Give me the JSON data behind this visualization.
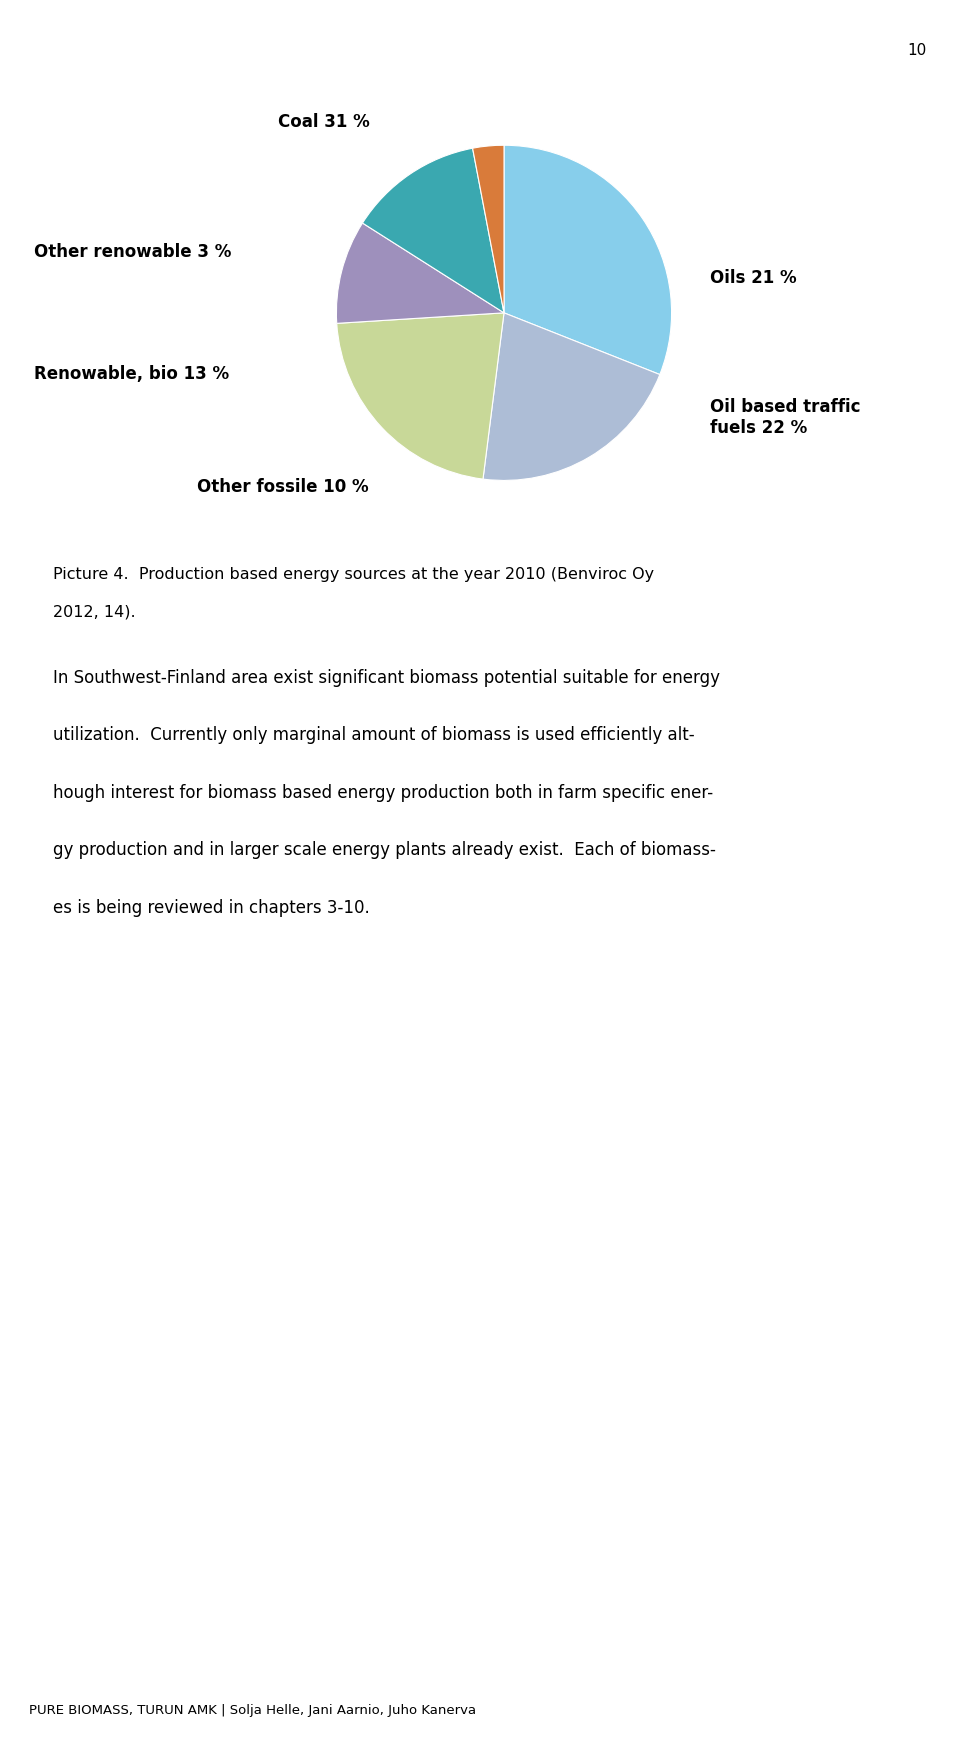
{
  "page_number": "10",
  "pie_values": [
    31,
    21,
    22,
    10,
    13,
    3
  ],
  "pie_labels": [
    "Coal 31 %",
    "Oils 21 %",
    "Oil based traffic\nfuels 22 %",
    "Other fossile 10 %",
    "Renowable, bio 13 %",
    "Other renowable 3 %"
  ],
  "pie_colors": [
    "#87CEEB",
    "#ADBDD6",
    "#C8D898",
    "#9E90BC",
    "#3AA8B0",
    "#D97B3A"
  ],
  "caption_line1": "Picture 4.  Production based energy sources at the year 2010 (Benviroc Oy",
  "caption_line2": "2012, 14).",
  "body_lines": [
    "In Southwest-Finland area exist significant biomass potential suitable for energy",
    "utilization.  Currently only marginal amount of biomass is used efficiently alt-",
    "hough interest for biomass based energy production both in farm specific ener-",
    "gy production and in larger scale energy plants already exist.  Each of biomass-",
    "es is being reviewed in chapters 3-10."
  ],
  "footer_text": "PURE BIOMASS, TURUN AMK | Solja Helle, Jani Aarnio, Juho Kanerva",
  "background_color": "#ffffff"
}
